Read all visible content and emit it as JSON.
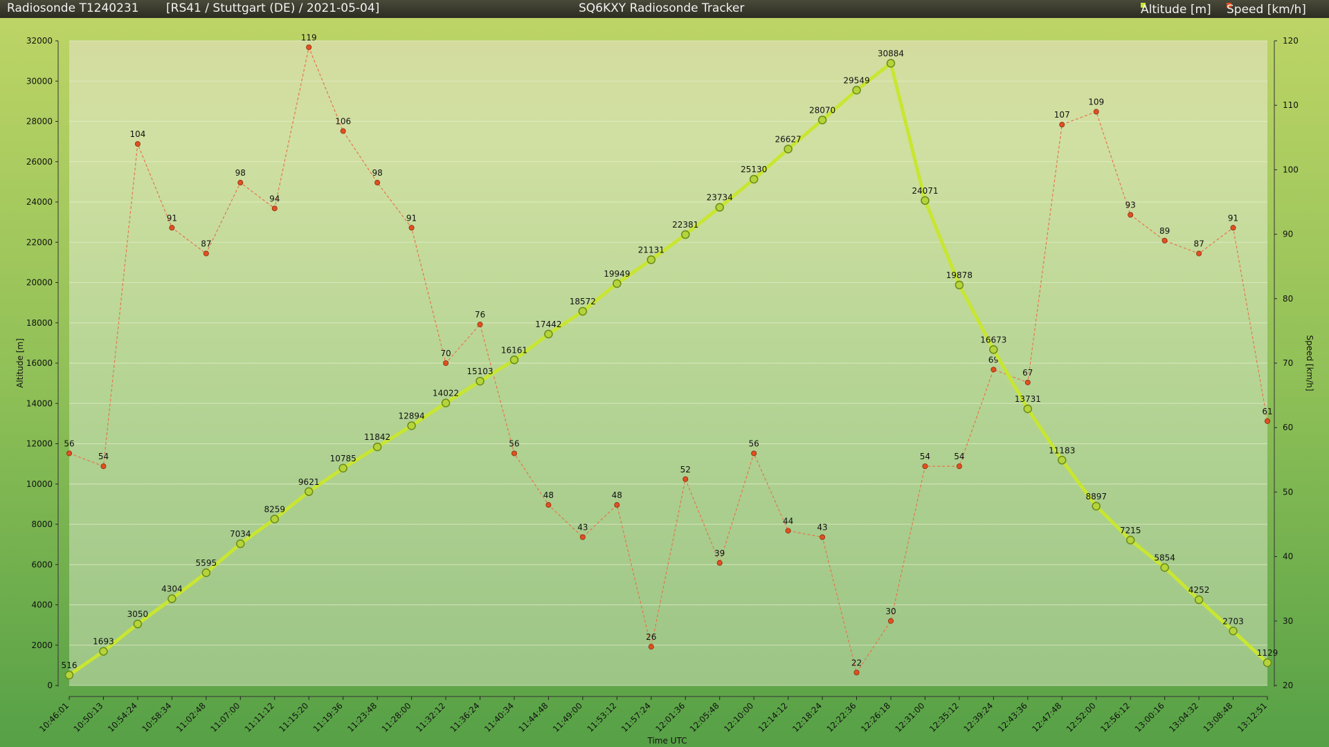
{
  "header": {
    "left_title": "Radiosonde T1240231",
    "subtitle": "[RS41 / Stuttgart (DE) / 2021-05-04]",
    "center_title": "SQ6KXY Radiosonde Tracker"
  },
  "colors": {
    "altitude": "#c8e632",
    "speed": "#e05020",
    "speed_line": "#e8744a"
  },
  "chart_data": {
    "type": "line",
    "xlabel": "Time UTC",
    "ylabel_left": "Altitude [m]",
    "ylabel_right": "Speed [km/h]",
    "ylim_left": [
      0,
      32000
    ],
    "ylim_right": [
      20,
      120
    ],
    "yticks_left": [
      0,
      2000,
      4000,
      6000,
      8000,
      10000,
      12000,
      14000,
      16000,
      18000,
      20000,
      22000,
      24000,
      26000,
      28000,
      30000,
      32000
    ],
    "yticks_right": [
      20,
      30,
      40,
      50,
      60,
      70,
      80,
      90,
      100,
      110,
      120
    ],
    "legend_position": "top-right",
    "categories": [
      "10:46:01",
      "10:50:13",
      "10:54:24",
      "10:58:34",
      "11:02:48",
      "11:07:00",
      "11:11:12",
      "11:15:20",
      "11:19:36",
      "11:23:48",
      "11:28:00",
      "11:32:12",
      "11:36:24",
      "11:40:34",
      "11:44:48",
      "11:49:00",
      "11:53:12",
      "11:57:24",
      "12:01:36",
      "12:05:48",
      "12:10:00",
      "12:14:12",
      "12:18:24",
      "12:22:36",
      "12:26:18",
      "12:31:00",
      "12:35:12",
      "12:39:24",
      "12:43:36",
      "12:47:48",
      "12:52:00",
      "12:56:12",
      "13:00:16",
      "13:04:32",
      "13:08:48",
      "13:12:51"
    ],
    "series": [
      {
        "name": "Altitude [m]",
        "axis": "left",
        "values": [
          516,
          1693,
          3050,
          4304,
          5595,
          7034,
          8259,
          9621,
          10785,
          11842,
          12894,
          14022,
          15103,
          16161,
          17442,
          18572,
          19949,
          21131,
          22381,
          23734,
          25130,
          26627,
          28070,
          29549,
          30884,
          24071,
          19878,
          16673,
          13731,
          11183,
          8897,
          7215,
          5854,
          4252,
          2703,
          1129
        ]
      },
      {
        "name": "Speed [km/h]",
        "axis": "right",
        "values": [
          56,
          54,
          104,
          91,
          87,
          98,
          94,
          119,
          106,
          98,
          91,
          70,
          76,
          56,
          48,
          43,
          48,
          26,
          52,
          39,
          56,
          44,
          43,
          22,
          30,
          54,
          54,
          69,
          67,
          107,
          109,
          93,
          89,
          87,
          91,
          61
        ]
      }
    ]
  }
}
